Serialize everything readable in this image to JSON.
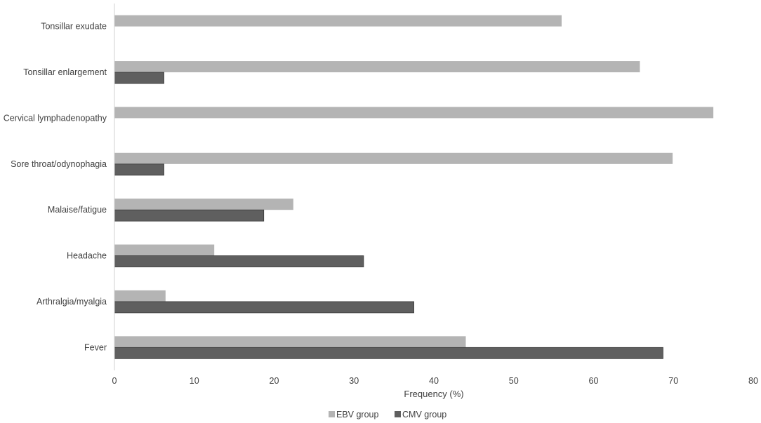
{
  "chart_data": {
    "type": "bar",
    "orientation": "horizontal",
    "categories": [
      "Tonsillar exudate",
      "Tonsillar enlargement",
      "Cervical lymphadenopathy",
      "Sore throat/odynophagia",
      "Malaise/fatigue",
      "Headache",
      "Arthralgia/myalgia",
      "Fever"
    ],
    "series": [
      {
        "name": "EBV group",
        "color": "#b4b4b4",
        "values": [
          56,
          65.8,
          75,
          69.9,
          22.4,
          12.5,
          6.4,
          44
        ]
      },
      {
        "name": "CMV group",
        "color": "#5f5f5f",
        "values": [
          0,
          6.2,
          0,
          6.2,
          18.7,
          31.2,
          37.5,
          68.7
        ]
      }
    ],
    "title": "",
    "xlabel": "Frequency (%)",
    "ylabel": "",
    "xlim": [
      0,
      80
    ],
    "xticks": [
      0,
      10,
      20,
      30,
      40,
      50,
      60,
      70,
      80
    ],
    "grid": false,
    "legend_position": "bottom"
  }
}
